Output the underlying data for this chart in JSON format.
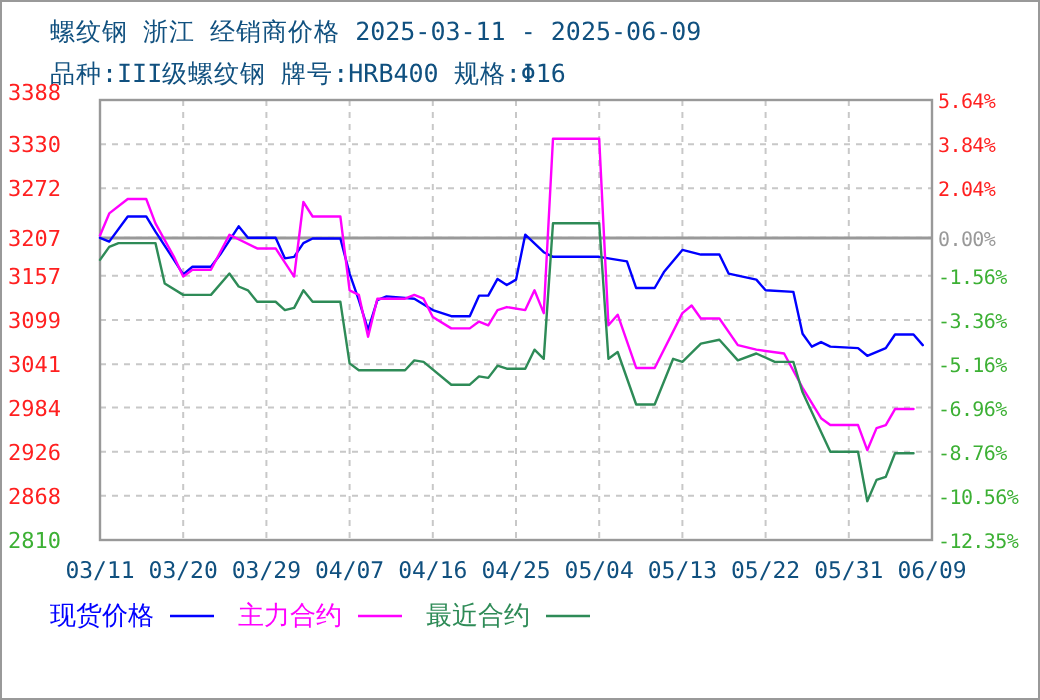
{
  "chart_data": {
    "type": "line",
    "title": "螺纹钢 浙江 经销商价格 2025-03-11 - 2025-06-09",
    "subtitle": "品种:III级螺纹钢 牌号:HRB400 规格:Φ16",
    "xlim": [
      "2025-03-11",
      "2025-06-09"
    ],
    "xticks": [
      {
        "value": "2025-03-11",
        "label": "03/11"
      },
      {
        "value": "2025-03-20",
        "label": "03/20"
      },
      {
        "value": "2025-03-29",
        "label": "03/29"
      },
      {
        "value": "2025-04-07",
        "label": "04/07"
      },
      {
        "value": "2025-04-16",
        "label": "04/16"
      },
      {
        "value": "2025-04-25",
        "label": "04/25"
      },
      {
        "value": "2025-05-04",
        "label": "05/04"
      },
      {
        "value": "2025-05-13",
        "label": "05/13"
      },
      {
        "value": "2025-05-22",
        "label": "05/22"
      },
      {
        "value": "2025-05-31",
        "label": "05/31"
      },
      {
        "value": "2025-06-09",
        "label": "06/09"
      }
    ],
    "ylim": [
      2810,
      3388
    ],
    "yticks": [
      3388,
      3330,
      3272,
      3207,
      3157,
      3099,
      3041,
      2984,
      2926,
      2868,
      2810
    ],
    "y2lim": [
      -12.35,
      5.64
    ],
    "y2ticks": [
      {
        "value": 5.64,
        "label": "5.64%"
      },
      {
        "value": 3.84,
        "label": "3.84%"
      },
      {
        "value": 2.04,
        "label": "2.04%"
      },
      {
        "value": 0,
        "label": "0.00%"
      },
      {
        "value": -1.56,
        "label": "-1.56%"
      },
      {
        "value": -3.36,
        "label": "-3.36%"
      },
      {
        "value": -5.16,
        "label": "-5.16%"
      },
      {
        "value": -6.96,
        "label": "-6.96%"
      },
      {
        "value": -8.76,
        "label": "-8.76%"
      },
      {
        "value": -10.56,
        "label": "-10.56%"
      },
      {
        "value": -12.35,
        "label": "-12.35%"
      }
    ],
    "ref_lines": [
      {
        "axis": "y2",
        "value": 0,
        "label": null,
        "color": "#999999"
      }
    ],
    "grid": true,
    "legend": "bottom",
    "line_style": "solid",
    "marker": "none",
    "series": [
      {
        "name": "现货价格",
        "color": "#0000ff",
        "x": [
          "2025-03-11",
          "2025-03-12",
          "2025-03-14",
          "2025-03-16",
          "2025-03-17",
          "2025-03-19",
          "2025-03-20",
          "2025-03-21",
          "2025-03-23",
          "2025-03-24",
          "2025-03-26",
          "2025-03-27",
          "2025-03-30",
          "2025-03-31",
          "2025-04-01",
          "2025-04-02",
          "2025-04-03",
          "2025-04-06",
          "2025-04-07",
          "2025-04-08",
          "2025-04-09",
          "2025-04-10",
          "2025-04-11",
          "2025-04-14",
          "2025-04-16",
          "2025-04-18",
          "2025-04-20",
          "2025-04-21",
          "2025-04-22",
          "2025-04-23",
          "2025-04-24",
          "2025-04-25",
          "2025-04-26",
          "2025-04-28",
          "2025-04-29",
          "2025-05-04",
          "2025-05-07",
          "2025-05-08",
          "2025-05-10",
          "2025-05-11",
          "2025-05-13",
          "2025-05-15",
          "2025-05-17",
          "2025-05-18",
          "2025-05-21",
          "2025-05-22",
          "2025-05-25",
          "2025-05-26",
          "2025-05-27",
          "2025-05-28",
          "2025-05-29",
          "2025-06-01",
          "2025-06-02",
          "2025-06-04",
          "2025-06-05",
          "2025-06-07",
          "2025-06-08"
        ],
        "values": [
          3207,
          3202,
          3235,
          3235,
          3215,
          3178,
          3159,
          3169,
          3169,
          3185,
          3222,
          3207,
          3207,
          3180,
          3182,
          3200,
          3206,
          3206,
          3160,
          3125,
          3086,
          3125,
          3130,
          3127,
          3112,
          3104,
          3104,
          3131,
          3131,
          3153,
          3145,
          3152,
          3211,
          3188,
          3182,
          3182,
          3176,
          3141,
          3141,
          3162,
          3191,
          3185,
          3185,
          3160,
          3152,
          3138,
          3136,
          3081,
          3064,
          3070,
          3064,
          3062,
          3052,
          3062,
          3080,
          3080,
          3066
        ]
      },
      {
        "name": "主力合约",
        "color": "#ff00ff",
        "x": [
          "2025-03-11",
          "2025-03-12",
          "2025-03-14",
          "2025-03-16",
          "2025-03-17",
          "2025-03-19",
          "2025-03-20",
          "2025-03-21",
          "2025-03-23",
          "2025-03-25",
          "2025-03-28",
          "2025-03-30",
          "2025-04-01",
          "2025-04-02",
          "2025-04-03",
          "2025-04-06",
          "2025-04-07",
          "2025-04-08",
          "2025-04-09",
          "2025-04-10",
          "2025-04-13",
          "2025-04-14",
          "2025-04-15",
          "2025-04-16",
          "2025-04-18",
          "2025-04-20",
          "2025-04-21",
          "2025-04-22",
          "2025-04-23",
          "2025-04-24",
          "2025-04-26",
          "2025-04-27",
          "2025-04-28",
          "2025-04-29",
          "2025-05-04",
          "2025-05-05",
          "2025-05-06",
          "2025-05-08",
          "2025-05-10",
          "2025-05-13",
          "2025-05-14",
          "2025-05-15",
          "2025-05-17",
          "2025-05-19",
          "2025-05-21",
          "2025-05-24",
          "2025-05-26",
          "2025-05-28",
          "2025-05-29",
          "2025-06-01",
          "2025-06-02",
          "2025-06-03",
          "2025-06-04",
          "2025-06-05",
          "2025-06-07"
        ],
        "values": [
          3210,
          3239,
          3258,
          3258,
          3226,
          3182,
          3156,
          3165,
          3165,
          3211,
          3193,
          3193,
          3156,
          3254,
          3235,
          3235,
          3138,
          3132,
          3077,
          3127,
          3127,
          3132,
          3127,
          3103,
          3088,
          3088,
          3097,
          3092,
          3112,
          3116,
          3112,
          3138,
          3108,
          3337,
          3337,
          3092,
          3106,
          3036,
          3036,
          3108,
          3118,
          3101,
          3101,
          3066,
          3060,
          3055,
          3010,
          2970,
          2961,
          2961,
          2928,
          2957,
          2961,
          2982,
          2982
        ]
      },
      {
        "name": "最近合约",
        "color": "#2e8b57",
        "x": [
          "2025-03-11",
          "2025-03-12",
          "2025-03-13",
          "2025-03-17",
          "2025-03-18",
          "2025-03-20",
          "2025-03-23",
          "2025-03-25",
          "2025-03-26",
          "2025-03-27",
          "2025-03-28",
          "2025-03-30",
          "2025-03-31",
          "2025-04-01",
          "2025-04-02",
          "2025-04-03",
          "2025-04-06",
          "2025-04-07",
          "2025-04-08",
          "2025-04-13",
          "2025-04-14",
          "2025-04-15",
          "2025-04-18",
          "2025-04-20",
          "2025-04-21",
          "2025-04-22",
          "2025-04-23",
          "2025-04-24",
          "2025-04-26",
          "2025-04-27",
          "2025-04-28",
          "2025-04-29",
          "2025-05-04",
          "2025-05-05",
          "2025-05-06",
          "2025-05-08",
          "2025-05-10",
          "2025-05-12",
          "2025-05-13",
          "2025-05-15",
          "2025-05-17",
          "2025-05-19",
          "2025-05-21",
          "2025-05-23",
          "2025-05-25",
          "2025-05-26",
          "2025-05-29",
          "2025-06-01",
          "2025-06-02",
          "2025-06-03",
          "2025-06-04",
          "2025-06-05",
          "2025-06-07"
        ],
        "values": [
          3178,
          3195,
          3200,
          3200,
          3147,
          3132,
          3132,
          3160,
          3143,
          3138,
          3123,
          3123,
          3112,
          3115,
          3138,
          3123,
          3123,
          3042,
          3033,
          3033,
          3046,
          3044,
          3014,
          3014,
          3025,
          3023,
          3039,
          3035,
          3035,
          3060,
          3048,
          3226,
          3226,
          3048,
          3057,
          2988,
          2988,
          3048,
          3044,
          3068,
          3073,
          3046,
          3055,
          3044,
          3044,
          3004,
          2926,
          2926,
          2861,
          2889,
          2893,
          2924,
          2924
        ]
      }
    ]
  }
}
